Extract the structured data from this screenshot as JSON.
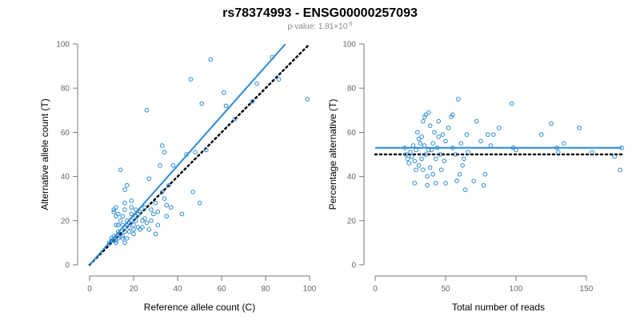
{
  "title": "rs78374993 - ENSG00000257093",
  "subtitle": {
    "prefix": "p-value: 1.81×10",
    "exponent": "-5"
  },
  "colors": {
    "points": "#2b8ad6",
    "fit_line": "#2b8ad6",
    "reference_line": "#000000",
    "axis": "#777777",
    "tick_text": "#666666"
  },
  "chart_data": [
    {
      "type": "scatter",
      "xlabel": "Reference allele count (C)",
      "ylabel": "Alternative allele count (T)",
      "xlim": [
        0,
        100
      ],
      "ylim": [
        0,
        100
      ],
      "xticks": [
        0,
        20,
        40,
        60,
        80,
        100
      ],
      "yticks": [
        0,
        20,
        40,
        60,
        80,
        100
      ],
      "grid": false,
      "fit_line": {
        "from": [
          0,
          0
        ],
        "to": [
          89,
          100
        ]
      },
      "reference_line": {
        "from": [
          0,
          0
        ],
        "to": [
          100,
          100
        ],
        "style": "dotted"
      },
      "points": [
        [
          9,
          10
        ],
        [
          10,
          11
        ],
        [
          10,
          12
        ],
        [
          11,
          11
        ],
        [
          11,
          13
        ],
        [
          11,
          24
        ],
        [
          11,
          25
        ],
        [
          12,
          10
        ],
        [
          12,
          11
        ],
        [
          12,
          18
        ],
        [
          12,
          22
        ],
        [
          12,
          26
        ],
        [
          13,
          12
        ],
        [
          13,
          15
        ],
        [
          13,
          18
        ],
        [
          13,
          23
        ],
        [
          14,
          14
        ],
        [
          14,
          20
        ],
        [
          14,
          43
        ],
        [
          15,
          12
        ],
        [
          15,
          13
        ],
        [
          15,
          18
        ],
        [
          15,
          22
        ],
        [
          16,
          10
        ],
        [
          16,
          15
        ],
        [
          16,
          17
        ],
        [
          16,
          25
        ],
        [
          16,
          28
        ],
        [
          16,
          34
        ],
        [
          17,
          12
        ],
        [
          17,
          18
        ],
        [
          17,
          20
        ],
        [
          17,
          36
        ],
        [
          18,
          15
        ],
        [
          18,
          17
        ],
        [
          18,
          19
        ],
        [
          19,
          20
        ],
        [
          19,
          23
        ],
        [
          19,
          26
        ],
        [
          19,
          29
        ],
        [
          20,
          14
        ],
        [
          20,
          16
        ],
        [
          20,
          18
        ],
        [
          21,
          20
        ],
        [
          21,
          22
        ],
        [
          21,
          25
        ],
        [
          22,
          17
        ],
        [
          22,
          23
        ],
        [
          23,
          16
        ],
        [
          23,
          24
        ],
        [
          24,
          17
        ],
        [
          24,
          20
        ],
        [
          25,
          21
        ],
        [
          25,
          26
        ],
        [
          26,
          19
        ],
        [
          26,
          70
        ],
        [
          27,
          16
        ],
        [
          27,
          39
        ],
        [
          28,
          20
        ],
        [
          28,
          25
        ],
        [
          29,
          23
        ],
        [
          30,
          14
        ],
        [
          30,
          28
        ],
        [
          31,
          18
        ],
        [
          31,
          24
        ],
        [
          32,
          45
        ],
        [
          33,
          33
        ],
        [
          33,
          54
        ],
        [
          34,
          30
        ],
        [
          34,
          51
        ],
        [
          35,
          27
        ],
        [
          35,
          22
        ],
        [
          36,
          36
        ],
        [
          37,
          26
        ],
        [
          38,
          45
        ],
        [
          42,
          23
        ],
        [
          44,
          50
        ],
        [
          46,
          84
        ],
        [
          47,
          33
        ],
        [
          48,
          51
        ],
        [
          50,
          28
        ],
        [
          51,
          73
        ],
        [
          53,
          52
        ],
        [
          55,
          93
        ],
        [
          61,
          78
        ],
        [
          62,
          72
        ],
        [
          66,
          66
        ],
        [
          74,
          74
        ],
        [
          76,
          82
        ],
        [
          83,
          94
        ],
        [
          86,
          84
        ],
        [
          99,
          75
        ]
      ]
    },
    {
      "type": "scatter",
      "xlabel": "Total number of reads",
      "ylabel": "Percentage alternative (T)",
      "xlim": [
        0,
        175
      ],
      "ylim": [
        0,
        100
      ],
      "xticks": [
        0,
        50,
        100,
        150
      ],
      "yticks": [
        0,
        20,
        40,
        60,
        80,
        100
      ],
      "grid": false,
      "fit_line": {
        "from": [
          0,
          53
        ],
        "to": [
          175,
          53
        ]
      },
      "reference_line": {
        "from": [
          0,
          50
        ],
        "to": [
          175,
          50
        ],
        "style": "dotted"
      },
      "points": [
        [
          21,
          53
        ],
        [
          22,
          50
        ],
        [
          23,
          48
        ],
        [
          24,
          46
        ],
        [
          25,
          51
        ],
        [
          26,
          49
        ],
        [
          27,
          54
        ],
        [
          28,
          37
        ],
        [
          28,
          47
        ],
        [
          29,
          43
        ],
        [
          29,
          52
        ],
        [
          30,
          60
        ],
        [
          31,
          57
        ],
        [
          31,
          45
        ],
        [
          32,
          55
        ],
        [
          33,
          58
        ],
        [
          33,
          48
        ],
        [
          34,
          43
        ],
        [
          34,
          65
        ],
        [
          35,
          67
        ],
        [
          35,
          54
        ],
        [
          36,
          68
        ],
        [
          36,
          50
        ],
        [
          37,
          40
        ],
        [
          37,
          36
        ],
        [
          38,
          69
        ],
        [
          38,
          52
        ],
        [
          39,
          63
        ],
        [
          39,
          44
        ],
        [
          40,
          52
        ],
        [
          41,
          41
        ],
        [
          41,
          55
        ],
        [
          42,
          60
        ],
        [
          43,
          37
        ],
        [
          43,
          48
        ],
        [
          44,
          53
        ],
        [
          45,
          65
        ],
        [
          45,
          58
        ],
        [
          46,
          50
        ],
        [
          47,
          43
        ],
        [
          48,
          59
        ],
        [
          49,
          47
        ],
        [
          50,
          56
        ],
        [
          50,
          37
        ],
        [
          52,
          62
        ],
        [
          54,
          67
        ],
        [
          55,
          68
        ],
        [
          55,
          53
        ],
        [
          57,
          50
        ],
        [
          58,
          38
        ],
        [
          59,
          75
        ],
        [
          60,
          41
        ],
        [
          61,
          55
        ],
        [
          62,
          45
        ],
        [
          63,
          48
        ],
        [
          64,
          34
        ],
        [
          65,
          59
        ],
        [
          66,
          51
        ],
        [
          70,
          38
        ],
        [
          72,
          65
        ],
        [
          75,
          56
        ],
        [
          77,
          36
        ],
        [
          78,
          41
        ],
        [
          80,
          59
        ],
        [
          82,
          54
        ],
        [
          84,
          59
        ],
        [
          88,
          62
        ],
        [
          97,
          73
        ],
        [
          98,
          53
        ],
        [
          100,
          52
        ],
        [
          118,
          59
        ],
        [
          125,
          64
        ],
        [
          129,
          53
        ],
        [
          130,
          51
        ],
        [
          134,
          55
        ],
        [
          145,
          62
        ],
        [
          154,
          51
        ],
        [
          170,
          49
        ],
        [
          174,
          43
        ],
        [
          175,
          53
        ]
      ]
    }
  ]
}
